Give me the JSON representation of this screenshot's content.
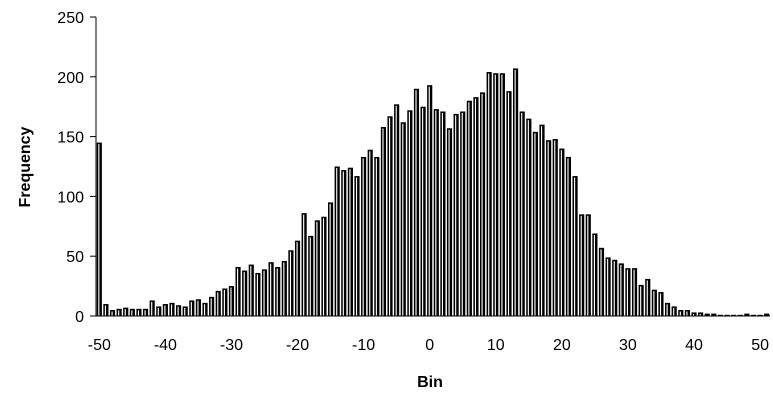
{
  "chart_data": {
    "type": "bar",
    "title": "",
    "xlabel": "Bin",
    "ylabel": "Frequency",
    "xlim": [
      -50,
      51
    ],
    "ylim": [
      0,
      250
    ],
    "x_ticks": [
      -50,
      -40,
      -30,
      -20,
      -10,
      0,
      10,
      20,
      30,
      40,
      50
    ],
    "y_ticks": [
      0,
      50,
      100,
      150,
      200,
      250
    ],
    "grid": false,
    "legend": "none",
    "bar_color": "#000000",
    "bar_highlight": "#ffffff",
    "x": [
      -50,
      -49,
      -48,
      -47,
      -46,
      -45,
      -44,
      -43,
      -42,
      -41,
      -40,
      -39,
      -38,
      -37,
      -36,
      -35,
      -34,
      -33,
      -32,
      -31,
      -30,
      -29,
      -28,
      -27,
      -26,
      -25,
      -24,
      -23,
      -22,
      -21,
      -20,
      -19,
      -18,
      -17,
      -16,
      -15,
      -14,
      -13,
      -12,
      -11,
      -10,
      -9,
      -8,
      -7,
      -6,
      -5,
      -4,
      -3,
      -2,
      -1,
      0,
      1,
      2,
      3,
      4,
      5,
      6,
      7,
      8,
      9,
      10,
      11,
      12,
      13,
      14,
      15,
      16,
      17,
      18,
      19,
      20,
      21,
      22,
      23,
      24,
      25,
      26,
      27,
      28,
      29,
      30,
      31,
      32,
      33,
      34,
      35,
      36,
      37,
      38,
      39,
      40,
      41,
      42,
      43,
      44,
      45,
      46,
      47,
      48,
      49,
      50,
      51
    ],
    "values": [
      145,
      10,
      5,
      6,
      7,
      6,
      6,
      6,
      13,
      8,
      10,
      11,
      9,
      8,
      13,
      14,
      11,
      16,
      21,
      23,
      25,
      41,
      38,
      43,
      36,
      39,
      45,
      41,
      46,
      55,
      63,
      86,
      67,
      80,
      83,
      95,
      125,
      122,
      124,
      117,
      133,
      139,
      133,
      158,
      167,
      177,
      162,
      172,
      190,
      175,
      193,
      173,
      171,
      157,
      169,
      171,
      180,
      183,
      187,
      204,
      203,
      203,
      188,
      207,
      171,
      165,
      154,
      160,
      147,
      148,
      140,
      133,
      117,
      85,
      85,
      69,
      57,
      49,
      47,
      44,
      40,
      40,
      26,
      31,
      22,
      20,
      11,
      8,
      5,
      5,
      3,
      3,
      2,
      2,
      1,
      1,
      1,
      1,
      2,
      1,
      1,
      2
    ]
  }
}
